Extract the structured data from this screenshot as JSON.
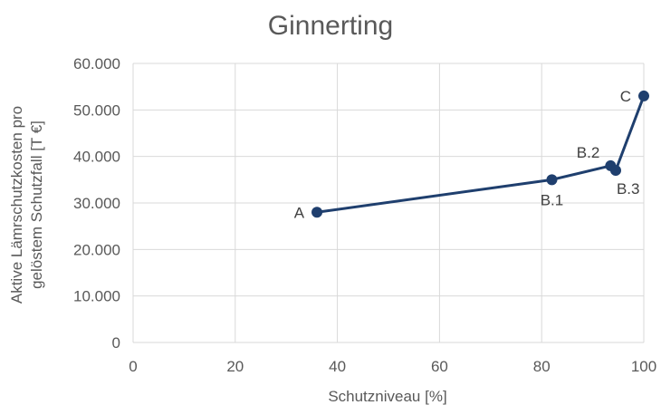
{
  "chart_data": {
    "type": "scatter",
    "title": "Ginnerting",
    "xlabel": "Schutzniveau [%]",
    "ylabel_lines": [
      "Aktive Lämrschutzkosten pro",
      "gelöstem Schutzfall [T €]"
    ],
    "xlim": [
      0,
      100
    ],
    "ylim": [
      0,
      60000
    ],
    "x_ticks": [
      0,
      20,
      40,
      60,
      80,
      100
    ],
    "x_tick_labels": [
      "0",
      "20",
      "40",
      "60",
      "80",
      "100"
    ],
    "y_ticks": [
      0,
      10000,
      20000,
      30000,
      40000,
      50000,
      60000
    ],
    "y_tick_labels": [
      "0",
      "10.000",
      "20.000",
      "30.000",
      "40.000",
      "50.000",
      "60.000"
    ],
    "grid": true,
    "series": [
      {
        "color": "#1f3f6e",
        "points": [
          {
            "label": "A",
            "x": 36,
            "y": 28000,
            "label_pos": "left"
          },
          {
            "label": "B.1",
            "x": 82,
            "y": 35000,
            "label_pos": "below"
          },
          {
            "label": "B.2",
            "x": 93.5,
            "y": 38000,
            "label_pos": "above-left"
          },
          {
            "label": "B.3",
            "x": 94.5,
            "y": 37000,
            "label_pos": "below-right"
          },
          {
            "label": "C",
            "x": 100,
            "y": 53000,
            "label_pos": "left"
          }
        ]
      }
    ]
  }
}
